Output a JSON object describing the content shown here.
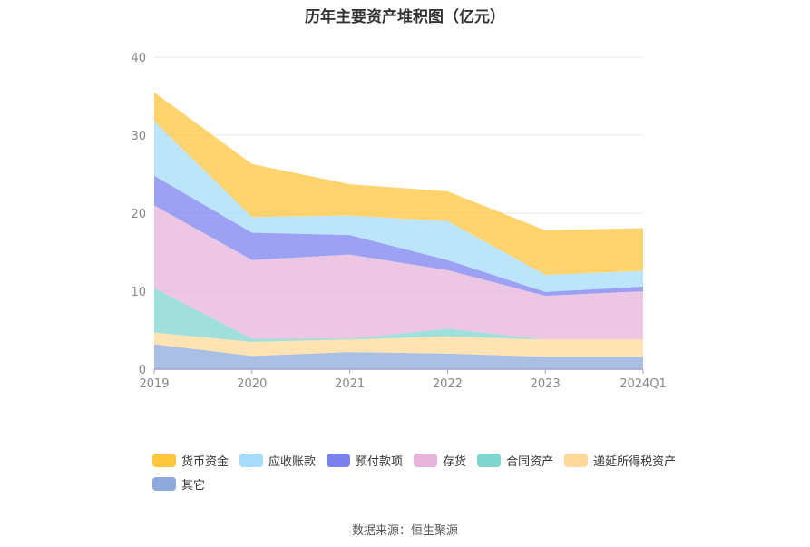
{
  "title": "历年主要资产堆积图（亿元）",
  "source_note": "数据来源：恒生聚源",
  "chart_data": {
    "type": "area",
    "stacked": true,
    "categories": [
      "2019",
      "2020",
      "2021",
      "2022",
      "2023",
      "2024Q1"
    ],
    "ylim": [
      0,
      40
    ],
    "yticks": [
      "0",
      "10",
      "20",
      "30",
      "40"
    ],
    "grid": true,
    "legend_position": "bottom",
    "series": [
      {
        "name": "其它",
        "color": "#8eaadb",
        "values": [
          3.2,
          1.7,
          2.2,
          2.0,
          1.6,
          1.6
        ]
      },
      {
        "name": "递延所得税资产",
        "color": "#ffd99a",
        "values": [
          1.5,
          1.8,
          1.6,
          2.2,
          2.2,
          2.2
        ]
      },
      {
        "name": "合同资产",
        "color": "#7fd6d0",
        "values": [
          5.7,
          0.4,
          0.1,
          1.0,
          0.0,
          0.0
        ]
      },
      {
        "name": "存货",
        "color": "#e6b3da",
        "values": [
          10.6,
          10.1,
          10.8,
          7.5,
          5.6,
          6.2
        ]
      },
      {
        "name": "预付款项",
        "color": "#7b82f0",
        "values": [
          3.8,
          3.5,
          2.5,
          1.3,
          0.5,
          0.6
        ]
      },
      {
        "name": "应收账款",
        "color": "#a6dcfa",
        "values": [
          7.0,
          2.0,
          2.5,
          5.0,
          2.2,
          2.0
        ]
      },
      {
        "name": "货币资金",
        "color": "#ffc53d",
        "values": [
          3.7,
          6.8,
          4.0,
          3.8,
          5.7,
          5.5
        ]
      }
    ],
    "legend_order": [
      "货币资金",
      "应收账款",
      "预付款项",
      "存货",
      "合同资产",
      "递延所得税资产",
      "其它"
    ]
  }
}
